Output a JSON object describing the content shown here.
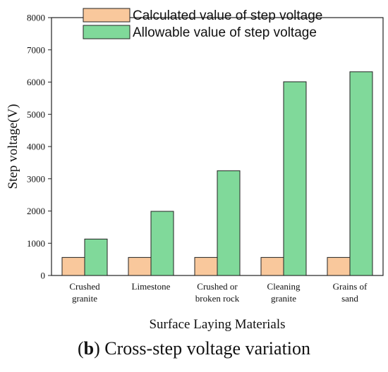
{
  "chart_data": {
    "type": "bar",
    "categories": [
      [
        "Crushed",
        "granite"
      ],
      [
        "Limestone"
      ],
      [
        "Crushed or",
        "broken rock"
      ],
      [
        "Cleaning",
        "granite"
      ],
      [
        "Grains of",
        "sand"
      ]
    ],
    "series": [
      {
        "name": "Calculated value of step voltage",
        "color": "#f9c89c",
        "values": [
          560,
          560,
          560,
          560,
          560
        ]
      },
      {
        "name": "Allowable value of step voltage",
        "color": "#80d99a",
        "values": [
          1130,
          1990,
          3250,
          6010,
          6320
        ]
      }
    ],
    "xlabel": "Surface Laying Materials",
    "ylabel": "Step voltage(V)",
    "ylim": [
      0,
      8000
    ],
    "yticks": [
      0,
      1000,
      2000,
      3000,
      4000,
      5000,
      6000,
      7000,
      8000
    ],
    "legend_position": "top",
    "grid": false
  },
  "caption": {
    "letter": "b",
    "text": " Cross-step voltage variation"
  }
}
